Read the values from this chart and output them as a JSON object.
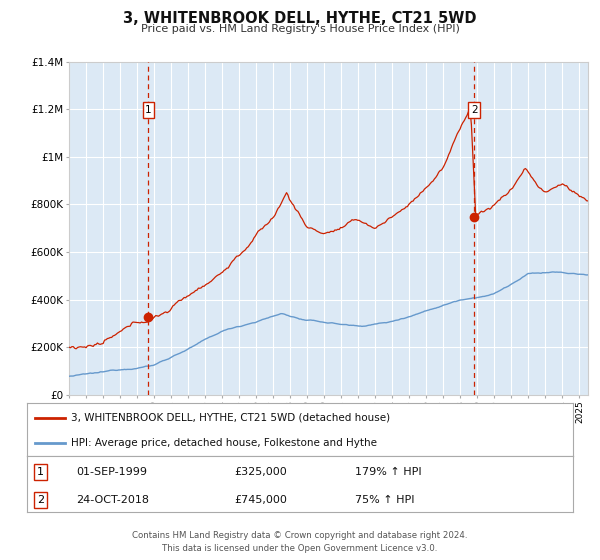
{
  "title": "3, WHITENBROOK DELL, HYTHE, CT21 5WD",
  "subtitle": "Price paid vs. HM Land Registry's House Price Index (HPI)",
  "ylim": [
    0,
    1400000
  ],
  "yticks": [
    0,
    200000,
    400000,
    600000,
    800000,
    1000000,
    1200000,
    1400000
  ],
  "ytick_labels": [
    "£0",
    "£200K",
    "£400K",
    "£600K",
    "£800K",
    "£1M",
    "£1.2M",
    "£1.4M"
  ],
  "xlim_start": 1995.0,
  "xlim_end": 2025.5,
  "background_color": "#ffffff",
  "plot_bg_color": "#dce9f5",
  "grid_color": "#ffffff",
  "hpi_line_color": "#6699cc",
  "price_line_color": "#cc2200",
  "marker_color": "#cc2200",
  "vline_color": "#cc2200",
  "marker1_x": 1999.67,
  "marker1_y": 325000,
  "marker2_x": 2018.81,
  "marker2_y": 745000,
  "annotation1_label": "1",
  "annotation2_label": "2",
  "legend_line1": "3, WHITENBROOK DELL, HYTHE, CT21 5WD (detached house)",
  "legend_line2": "HPI: Average price, detached house, Folkestone and Hythe",
  "table_row1_num": "1",
  "table_row1_date": "01-SEP-1999",
  "table_row1_price": "£325,000",
  "table_row1_hpi": "179% ↑ HPI",
  "table_row2_num": "2",
  "table_row2_date": "24-OCT-2018",
  "table_row2_price": "£745,000",
  "table_row2_hpi": "75% ↑ HPI",
  "footer_line1": "Contains HM Land Registry data © Crown copyright and database right 2024.",
  "footer_line2": "This data is licensed under the Open Government Licence v3.0."
}
